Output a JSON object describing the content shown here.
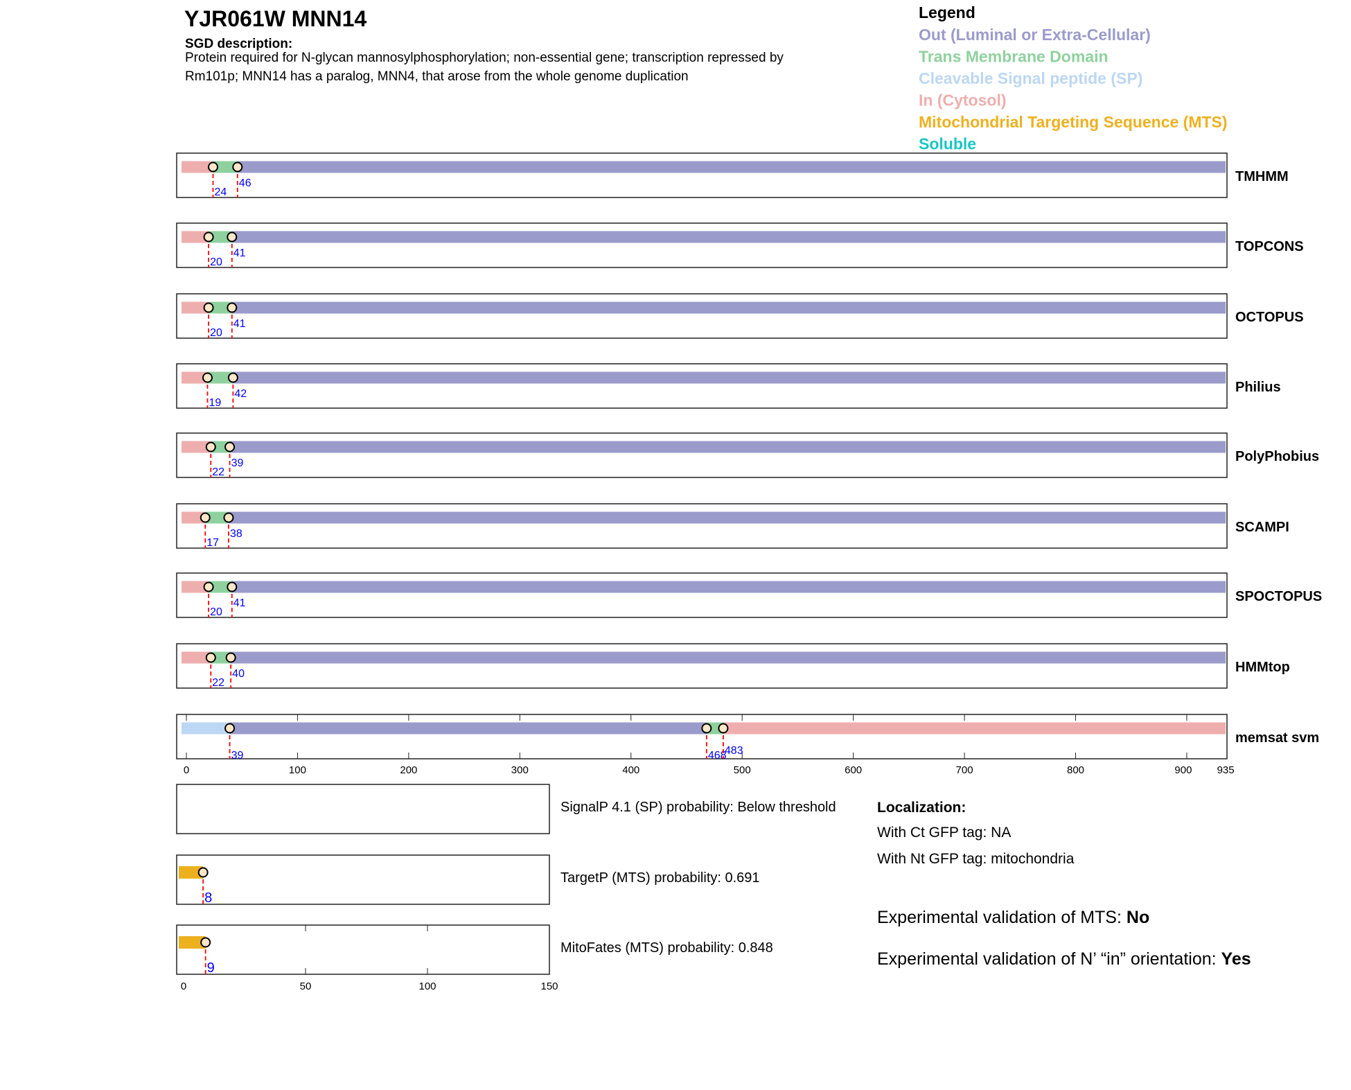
{
  "header": {
    "title": "YJR061W  MNN14",
    "description_label": "SGD description:",
    "description_line1": "Protein required for N-glycan mannosylphosphorylation; non-essential gene; transcription repressed by",
    "description_line2": "Rm101p; MNN14 has a paralog, MNN4, that arose from the whole genome duplication"
  },
  "legend": {
    "title": "Legend",
    "items": [
      {
        "label": "Out (Luminal or Extra-Cellular)",
        "color": "#9b9bcb"
      },
      {
        "label": "Trans Membrane Domain",
        "color": "#8fd19e"
      },
      {
        "label": "Cleavable Signal peptide (SP)",
        "color": "#bcd7f3"
      },
      {
        "label": "In (Cytosol)",
        "color": "#eeaeae"
      },
      {
        "label": "Mitochondrial Targeting Sequence (MTS)",
        "color": "#edb120"
      },
      {
        "label": "Soluble",
        "color": "#1bc6c6"
      }
    ]
  },
  "chart_data": [
    {
      "type": "track",
      "xlim": [
        0,
        935
      ],
      "xticks": [
        0,
        100,
        200,
        300,
        400,
        500,
        600,
        700,
        800,
        900,
        935
      ],
      "tracks": [
        {
          "name": "TMHMM",
          "segments": [
            [
              "in",
              0,
              24
            ],
            [
              "tm",
              24,
              46
            ],
            [
              "out",
              46,
              935
            ]
          ],
          "markers": [
            24,
            46
          ]
        },
        {
          "name": "TOPCONS",
          "segments": [
            [
              "in",
              0,
              20
            ],
            [
              "tm",
              20,
              41
            ],
            [
              "out",
              41,
              935
            ]
          ],
          "markers": [
            20,
            41
          ]
        },
        {
          "name": "OCTOPUS",
          "segments": [
            [
              "in",
              0,
              20
            ],
            [
              "tm",
              20,
              41
            ],
            [
              "out",
              41,
              935
            ]
          ],
          "markers": [
            20,
            41
          ]
        },
        {
          "name": "Philius",
          "segments": [
            [
              "in",
              0,
              19
            ],
            [
              "tm",
              19,
              42
            ],
            [
              "out",
              42,
              935
            ]
          ],
          "markers": [
            19,
            42
          ]
        },
        {
          "name": "PolyPhobius",
          "segments": [
            [
              "in",
              0,
              22
            ],
            [
              "tm",
              22,
              39
            ],
            [
              "out",
              39,
              935
            ]
          ],
          "markers": [
            22,
            39
          ]
        },
        {
          "name": "SCAMPI",
          "segments": [
            [
              "in",
              0,
              17
            ],
            [
              "tm",
              17,
              38
            ],
            [
              "out",
              38,
              935
            ]
          ],
          "markers": [
            17,
            38
          ]
        },
        {
          "name": "SPOCTOPUS",
          "segments": [
            [
              "in",
              0,
              20
            ],
            [
              "tm",
              20,
              41
            ],
            [
              "out",
              41,
              935
            ]
          ],
          "markers": [
            20,
            41
          ]
        },
        {
          "name": "HMMtop",
          "segments": [
            [
              "in",
              0,
              22
            ],
            [
              "tm",
              22,
              40
            ],
            [
              "out",
              40,
              935
            ]
          ],
          "markers": [
            22,
            40
          ]
        },
        {
          "name": "memsat svm",
          "segments": [
            [
              "sp",
              0,
              39
            ],
            [
              "out",
              39,
              468
            ],
            [
              "tm",
              468,
              483
            ],
            [
              "in",
              483,
              935
            ]
          ],
          "markers": [
            39,
            468,
            483
          ]
        }
      ]
    },
    {
      "type": "track",
      "xlim": [
        0,
        150
      ],
      "xticks": [
        0,
        50,
        100,
        150
      ],
      "tracks": [
        {
          "name": "SignalP 4.1 (SP) probability: Below threshold",
          "segments": [],
          "markers": []
        },
        {
          "name": "TargetP (MTS) probability: 0.691",
          "segments": [
            [
              "mts",
              0,
              8
            ]
          ],
          "markers": [
            8
          ]
        },
        {
          "name": "MitoFates (MTS) probability: 0.848",
          "segments": [
            [
              "mts",
              0,
              9
            ]
          ],
          "markers": [
            9
          ]
        }
      ]
    }
  ],
  "localization": {
    "title": "Localization:",
    "ct": "With Ct GFP tag: NA",
    "nt": "With Nt GFP tag: mitochondria",
    "mts_label": "Experimental validation of MTS: ",
    "mts_value": "No",
    "orient_label": "Experimental validation of N’ “in” orientation: ",
    "orient_value": "Yes"
  },
  "colors": {
    "in": "#eeaeae",
    "tm": "#8fd19e",
    "out": "#9b9bcb",
    "sp": "#bcd7f3",
    "mts": "#edb120",
    "marker_line": "#ff0000",
    "marker_label": "#0000ff"
  }
}
